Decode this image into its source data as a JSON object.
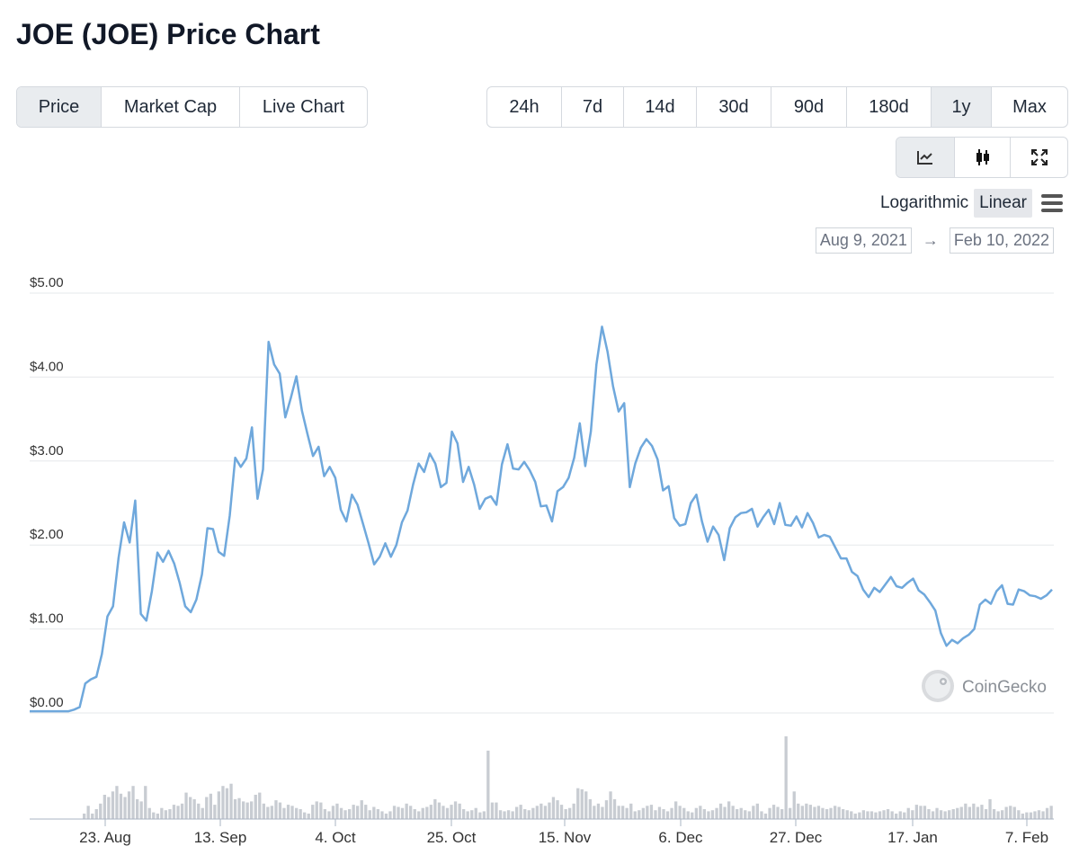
{
  "title": "JOE (JOE) Price Chart",
  "tabs": [
    {
      "label": "Price",
      "active": true
    },
    {
      "label": "Market Cap",
      "active": false
    },
    {
      "label": "Live Chart",
      "active": false
    }
  ],
  "ranges": [
    {
      "label": "24h",
      "active": false
    },
    {
      "label": "7d",
      "active": false
    },
    {
      "label": "14d",
      "active": false
    },
    {
      "label": "30d",
      "active": false
    },
    {
      "label": "90d",
      "active": false
    },
    {
      "label": "180d",
      "active": false
    },
    {
      "label": "1y",
      "active": true
    },
    {
      "label": "Max",
      "active": false
    }
  ],
  "tools": [
    {
      "icon": "line-chart-icon",
      "active": true
    },
    {
      "icon": "candlestick-icon",
      "active": false
    },
    {
      "icon": "expand-icon",
      "active": false
    }
  ],
  "scale": {
    "log_label": "Logarithmic",
    "linear_label": "Linear",
    "active": "Linear"
  },
  "date_range": {
    "from": "Aug 9, 2021",
    "to": "Feb 10, 2022",
    "arrow": "→"
  },
  "watermark": "CoinGecko",
  "colors": {
    "line": "#6fa8dc",
    "volume": "#c8ccd2",
    "grid": "#e6e8eb"
  },
  "chart_data": {
    "type": "line",
    "title": "",
    "xlabel": "",
    "ylabel": "",
    "x_range": [
      "2021-08-09",
      "2022-02-10"
    ],
    "ylim": [
      0,
      5
    ],
    "y_ticks": [
      "$0.00",
      "$1.00",
      "$2.00",
      "$3.00",
      "$4.00",
      "$5.00"
    ],
    "x_ticks": [
      "23. Aug",
      "13. Sep",
      "4. Oct",
      "25. Oct",
      "15. Nov",
      "6. Dec",
      "27. Dec",
      "17. Jan",
      "7. Feb"
    ],
    "grid": true,
    "legend": "none",
    "series": [
      {
        "values": [
          0.02,
          0.02,
          0.02,
          0.02,
          0.02,
          0.02,
          0.02,
          0.02,
          0.04,
          0.07,
          0.35,
          0.4,
          0.43,
          0.7,
          1.15,
          1.27,
          1.85,
          2.27,
          2.03,
          2.53,
          1.18,
          1.1,
          1.45,
          1.91,
          1.8,
          1.93,
          1.78,
          1.55,
          1.27,
          1.2,
          1.35,
          1.65,
          2.2,
          2.19,
          1.92,
          1.87,
          2.35,
          3.04,
          2.93,
          3.03,
          3.4,
          2.55,
          2.9,
          4.42,
          4.15,
          4.04,
          3.52,
          3.75,
          4.01,
          3.6,
          3.32,
          3.06,
          3.17,
          2.82,
          2.93,
          2.8,
          2.42,
          2.28,
          2.6,
          2.48,
          2.25,
          2.02,
          1.77,
          1.86,
          2.02,
          1.86,
          2.0,
          2.27,
          2.41,
          2.72,
          2.97,
          2.87,
          3.09,
          2.97,
          2.69,
          2.74,
          3.35,
          3.21,
          2.75,
          2.93,
          2.72,
          2.43,
          2.55,
          2.58,
          2.48,
          2.96,
          3.2,
          2.91,
          2.9,
          2.99,
          2.89,
          2.75,
          2.46,
          2.47,
          2.28,
          2.64,
          2.69,
          2.8,
          3.04,
          3.45,
          2.94,
          3.35,
          4.15,
          4.6,
          4.3,
          3.89,
          3.59,
          3.69,
          2.69,
          2.97,
          3.16,
          3.26,
          3.18,
          3.02,
          2.65,
          2.7,
          2.32,
          2.23,
          2.25,
          2.5,
          2.6,
          2.28,
          2.04,
          2.22,
          2.12,
          1.82,
          2.2,
          2.33,
          2.38,
          2.39,
          2.43,
          2.22,
          2.33,
          2.42,
          2.25,
          2.5,
          2.24,
          2.23,
          2.34,
          2.21,
          2.38,
          2.26,
          2.09,
          2.12,
          2.1,
          1.97,
          1.84,
          1.84,
          1.68,
          1.63,
          1.47,
          1.38,
          1.49,
          1.44,
          1.53,
          1.62,
          1.51,
          1.49,
          1.55,
          1.6,
          1.46,
          1.41,
          1.32,
          1.22,
          0.95,
          0.8,
          0.87,
          0.83,
          0.89,
          0.93,
          1.0,
          1.29,
          1.35,
          1.3,
          1.45,
          1.52,
          1.3,
          1.29,
          1.47,
          1.45,
          1.4,
          1.39,
          1.36,
          1.4,
          1.47
        ]
      }
    ],
    "volume": [
      0,
      0,
      0,
      0,
      0,
      0,
      0,
      0,
      0,
      0,
      0,
      0,
      0,
      0.05,
      0.12,
      0.05,
      0.09,
      0.14,
      0.22,
      0.2,
      0.25,
      0.3,
      0.23,
      0.2,
      0.25,
      0.3,
      0.18,
      0.16,
      0.3,
      0.1,
      0.06,
      0.05,
      0.1,
      0.08,
      0.09,
      0.13,
      0.12,
      0.14,
      0.24,
      0.2,
      0.18,
      0.14,
      0.1,
      0.2,
      0.23,
      0.13,
      0.25,
      0.3,
      0.28,
      0.32,
      0.18,
      0.19,
      0.16,
      0.15,
      0.16,
      0.22,
      0.24,
      0.14,
      0.11,
      0.12,
      0.17,
      0.15,
      0.1,
      0.13,
      0.12,
      0.1,
      0.09,
      0.06,
      0.05,
      0.13,
      0.16,
      0.15,
      0.09,
      0.07,
      0.12,
      0.14,
      0.1,
      0.08,
      0.09,
      0.13,
      0.12,
      0.17,
      0.13,
      0.08,
      0.11,
      0.09,
      0.07,
      0.05,
      0.07,
      0.12,
      0.11,
      0.1,
      0.14,
      0.12,
      0.09,
      0.07,
      0.1,
      0.11,
      0.13,
      0.18,
      0.15,
      0.12,
      0.1,
      0.13,
      0.16,
      0.14,
      0.09,
      0.07,
      0.08,
      0.1,
      0.06,
      0.07,
      0.62,
      0.15,
      0.15,
      0.08,
      0.07,
      0.08,
      0.07,
      0.11,
      0.13,
      0.09,
      0.08,
      0.1,
      0.12,
      0.14,
      0.12,
      0.15,
      0.2,
      0.17,
      0.13,
      0.09,
      0.1,
      0.14,
      0.28,
      0.27,
      0.25,
      0.18,
      0.12,
      0.14,
      0.11,
      0.17,
      0.25,
      0.18,
      0.12,
      0.12,
      0.1,
      0.14,
      0.07,
      0.08,
      0.1,
      0.12,
      0.13,
      0.08,
      0.11,
      0.09,
      0.07,
      0.1,
      0.16,
      0.12,
      0.1,
      0.07,
      0.06,
      0.1,
      0.12,
      0.09,
      0.07,
      0.08,
      0.1,
      0.14,
      0.11,
      0.16,
      0.12,
      0.09,
      0.1,
      0.08,
      0.07,
      0.12,
      0.14,
      0.07,
      0.05,
      0.1,
      0.13,
      0.11,
      0.09,
      0.75,
      0.1,
      0.25,
      0.14,
      0.12,
      0.14,
      0.13,
      0.11,
      0.12,
      0.1,
      0.09,
      0.1,
      0.12,
      0.11,
      0.09,
      0.08,
      0.07,
      0.05,
      0.06,
      0.08,
      0.07,
      0.07,
      0.06,
      0.07,
      0.08,
      0.09,
      0.07,
      0.05,
      0.07,
      0.06,
      0.1,
      0.08,
      0.13,
      0.12,
      0.12,
      0.09,
      0.07,
      0.1,
      0.08,
      0.07,
      0.08,
      0.09,
      0.1,
      0.11,
      0.14,
      0.11,
      0.14,
      0.11,
      0.13,
      0.09,
      0.18,
      0.09,
      0.07,
      0.08,
      0.11,
      0.12,
      0.11,
      0.08,
      0.05,
      0.06,
      0.06,
      0.07,
      0.08,
      0.07,
      0.1,
      0.12
    ]
  }
}
